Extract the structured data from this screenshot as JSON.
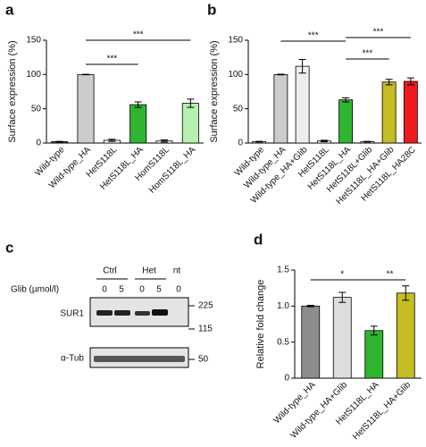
{
  "chart_data": [
    {
      "type": "bar",
      "panel": "a",
      "ylabel": "Surface expression (%)",
      "categories": [
        "Wild-type",
        "Wild-type_HA",
        "HetS118L",
        "HetS118L_HA",
        "HomS118L",
        "HomS118L_HA"
      ],
      "values": [
        2,
        100,
        4,
        56,
        3,
        58
      ],
      "errors": [
        0.5,
        0.3,
        1.5,
        4,
        1.5,
        6
      ],
      "colors": [
        "#555555",
        "#cccccc",
        "#ffffff",
        "#2fb52f",
        "#ffffff",
        "#b6f0ae"
      ],
      "ylim": [
        0,
        150
      ],
      "yticks": [
        0,
        50,
        100,
        150
      ],
      "annotations": [
        "***",
        "***"
      ]
    },
    {
      "type": "bar",
      "panel": "b",
      "ylabel": "Surface expression (%)",
      "categories": [
        "Wild-type",
        "Wild-type_HA",
        "Wild-type_HA+Glib",
        "HetS118L",
        "HetS118L_HA",
        "HetS118L+Glib",
        "HetS118L_HA+Glib",
        "HetS118L_HA28C"
      ],
      "values": [
        2,
        100,
        112,
        3,
        63,
        2,
        89,
        90
      ],
      "errors": [
        0.5,
        0.5,
        10,
        1,
        3,
        0.5,
        4,
        5
      ],
      "colors": [
        "#ffffff",
        "#cccccc",
        "#eeeeee",
        "#ffffff",
        "#2fb52f",
        "#ffffff",
        "#c5bd22",
        "#ee1b1b"
      ],
      "ylim": [
        0,
        150
      ],
      "yticks": [
        0,
        50,
        100,
        150
      ],
      "annotations": [
        "***",
        "***",
        "***"
      ]
    },
    {
      "type": "bar",
      "panel": "d",
      "ylabel": "Relative fold change",
      "categories": [
        "Wild-type_HA",
        "Wild-type_HA+Glib",
        "HetS118L_HA",
        "HetS118L_HA+Glib"
      ],
      "values": [
        1.0,
        1.12,
        0.66,
        1.18
      ],
      "errors": [
        0.01,
        0.07,
        0.06,
        0.1
      ],
      "colors": [
        "#8c8c8c",
        "#dddddd",
        "#2fb52f",
        "#c5bd22"
      ],
      "ylim": [
        0,
        1.5
      ],
      "yticks": [
        0,
        0.5,
        {
          "value": 1,
          "label": "1.0"
        },
        1.5
      ],
      "annotations": [
        "*",
        "**"
      ]
    }
  ],
  "blot": {
    "panel": "c",
    "groups": [
      "Ctrl",
      "Het",
      "nt"
    ],
    "dose_label": "Glib (µmol/l)",
    "doses": [
      "0",
      "5",
      "0",
      "5",
      "0"
    ],
    "bands": [
      "SUR1",
      "α-Tub"
    ],
    "markers": [
      225,
      115,
      50
    ]
  }
}
